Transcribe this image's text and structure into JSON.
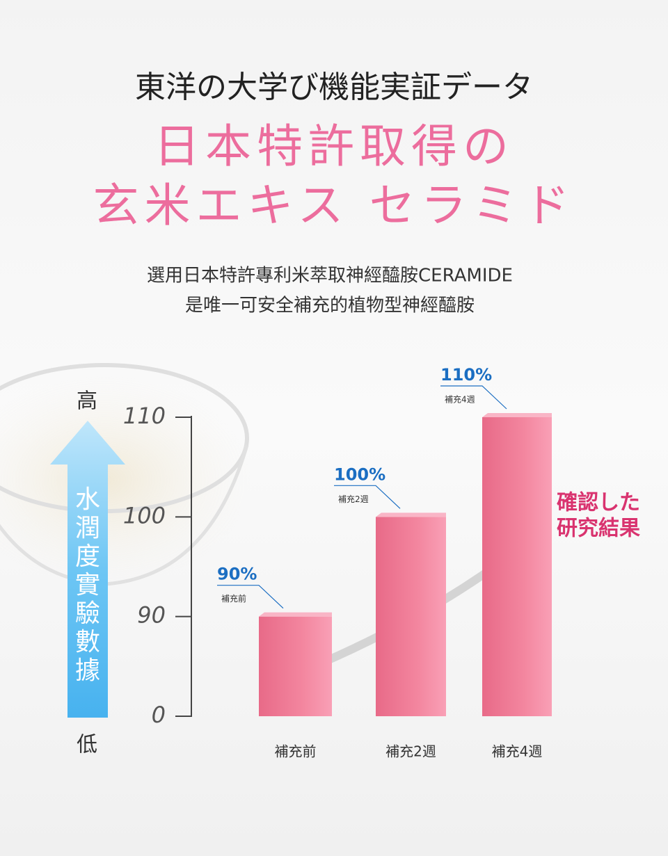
{
  "header": {
    "title": "東洋の大学び機能実証データ",
    "headline": [
      "日本特許取得の",
      "玄米エキス セラミド"
    ],
    "description": [
      "選用日本特許專利米萃取神經醯胺CERAMIDE",
      "是唯一可安全補充的植物型神經醯胺"
    ]
  },
  "chart_data": {
    "type": "bar",
    "categories": [
      "補充前",
      "補充2週",
      "補充4週"
    ],
    "values": [
      90,
      100,
      110
    ],
    "value_labels": [
      "90%",
      "100%",
      "110%"
    ],
    "color": "#ef7f9b",
    "ylim": [
      0,
      110
    ],
    "yticks": [
      0,
      90,
      100,
      110
    ],
    "y_label": "水潤度實驗數據",
    "y_high": "高",
    "y_low": "低",
    "annotation": [
      "確認した",
      "研究結果"
    ]
  }
}
